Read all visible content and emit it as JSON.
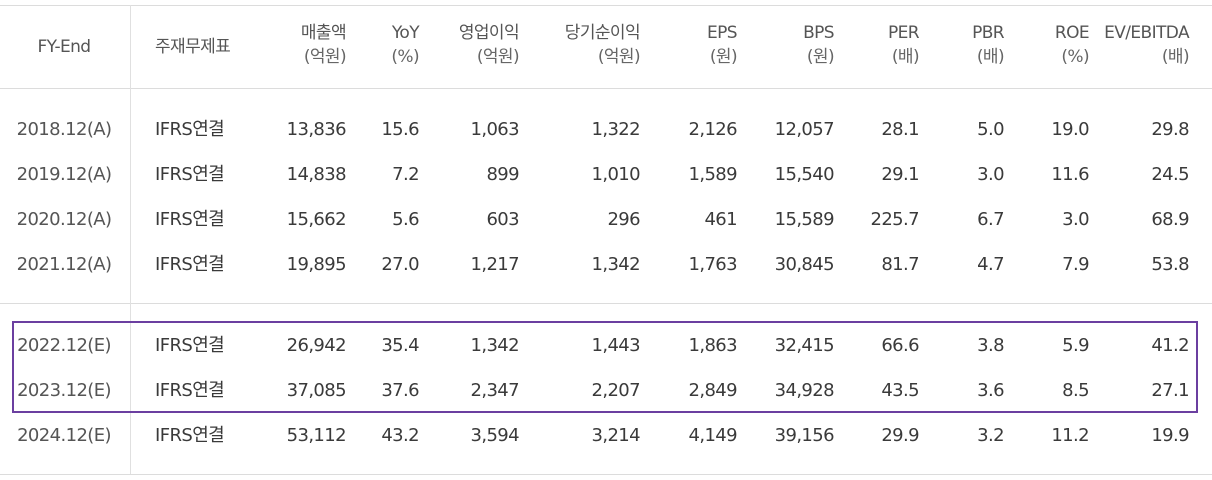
{
  "headers": [
    {
      "l1": "FY-End",
      "l2": ""
    },
    {
      "l1": "주재무제표",
      "l2": ""
    },
    {
      "l1": "매출액",
      "l2": "(억원)"
    },
    {
      "l1": "YoY",
      "l2": "(%)"
    },
    {
      "l1": "영업이익",
      "l2": "(억원)"
    },
    {
      "l1": "당기순이익",
      "l2": "(억원)"
    },
    {
      "l1": "EPS",
      "l2": "(원)"
    },
    {
      "l1": "BPS",
      "l2": "(원)"
    },
    {
      "l1": "PER",
      "l2": "(배)"
    },
    {
      "l1": "PBR",
      "l2": "(배)"
    },
    {
      "l1": "ROE",
      "l2": "(%)"
    },
    {
      "l1": "EV/EBITDA",
      "l2": "(배)"
    }
  ],
  "rows": [
    [
      "2018.12(A)",
      "IFRS연결",
      "13,836",
      "15.6",
      "1,063",
      "1,322",
      "2,126",
      "12,057",
      "28.1",
      "5.0",
      "19.0",
      "29.8"
    ],
    [
      "2019.12(A)",
      "IFRS연결",
      "14,838",
      "7.2",
      "899",
      "1,010",
      "1,589",
      "15,540",
      "29.1",
      "3.0",
      "11.6",
      "24.5"
    ],
    [
      "2020.12(A)",
      "IFRS연결",
      "15,662",
      "5.6",
      "603",
      "296",
      "461",
      "15,589",
      "225.7",
      "6.7",
      "3.0",
      "68.9"
    ],
    [
      "2021.12(A)",
      "IFRS연결",
      "19,895",
      "27.0",
      "1,217",
      "1,342",
      "1,763",
      "30,845",
      "81.7",
      "4.7",
      "7.9",
      "53.8"
    ],
    [
      "2022.12(E)",
      "IFRS연결",
      "26,942",
      "35.4",
      "1,342",
      "1,443",
      "1,863",
      "32,415",
      "66.6",
      "3.8",
      "5.9",
      "41.2"
    ],
    [
      "2023.12(E)",
      "IFRS연결",
      "37,085",
      "37.6",
      "2,347",
      "2,207",
      "2,849",
      "34,928",
      "43.5",
      "3.6",
      "8.5",
      "27.1"
    ],
    [
      "2024.12(E)",
      "IFRS연결",
      "53,112",
      "43.2",
      "3,594",
      "3,214",
      "4,149",
      "39,156",
      "29.9",
      "3.2",
      "11.2",
      "19.9"
    ]
  ],
  "colors": {
    "highlight_border": "#6b3fa0",
    "grid": "#dcdcdc",
    "text": "#3a3a3a"
  }
}
